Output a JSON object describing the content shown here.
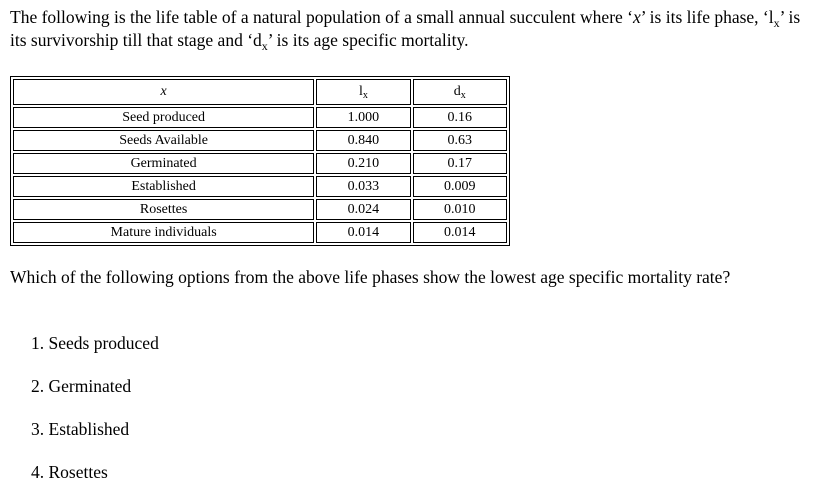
{
  "intro": {
    "part1": "The following is the life table of a natural population of a small annual succulent where ‘",
    "x_symbol": "x",
    "part2": "’ is its life phase, ‘l",
    "lx_sub": "x",
    "part3": "’ is its survivorship till that stage and ‘d",
    "dx_sub": "x",
    "part4": "’ is its age specific mortality."
  },
  "table": {
    "headers": {
      "col1": "x",
      "col2_main": "l",
      "col2_sub": "x",
      "col3_main": "d",
      "col3_sub": "x"
    },
    "rows": [
      {
        "phase": "Seed produced",
        "lx": "1.000",
        "dx": "0.16"
      },
      {
        "phase": "Seeds Available",
        "lx": "0.840",
        "dx": "0.63"
      },
      {
        "phase": "Germinated",
        "lx": "0.210",
        "dx": "0.17"
      },
      {
        "phase": "Established",
        "lx": "0.033",
        "dx": "0.009"
      },
      {
        "phase": "Rosettes",
        "lx": "0.024",
        "dx": "0.010"
      },
      {
        "phase": "Mature individuals",
        "lx": "0.014",
        "dx": "0.014"
      }
    ]
  },
  "question": "Which of the following options from the above life phases show the lowest age specific mortality rate?",
  "options": [
    "1. Seeds produced",
    "2. Germinated",
    "3. Established",
    "4. Rosettes"
  ]
}
